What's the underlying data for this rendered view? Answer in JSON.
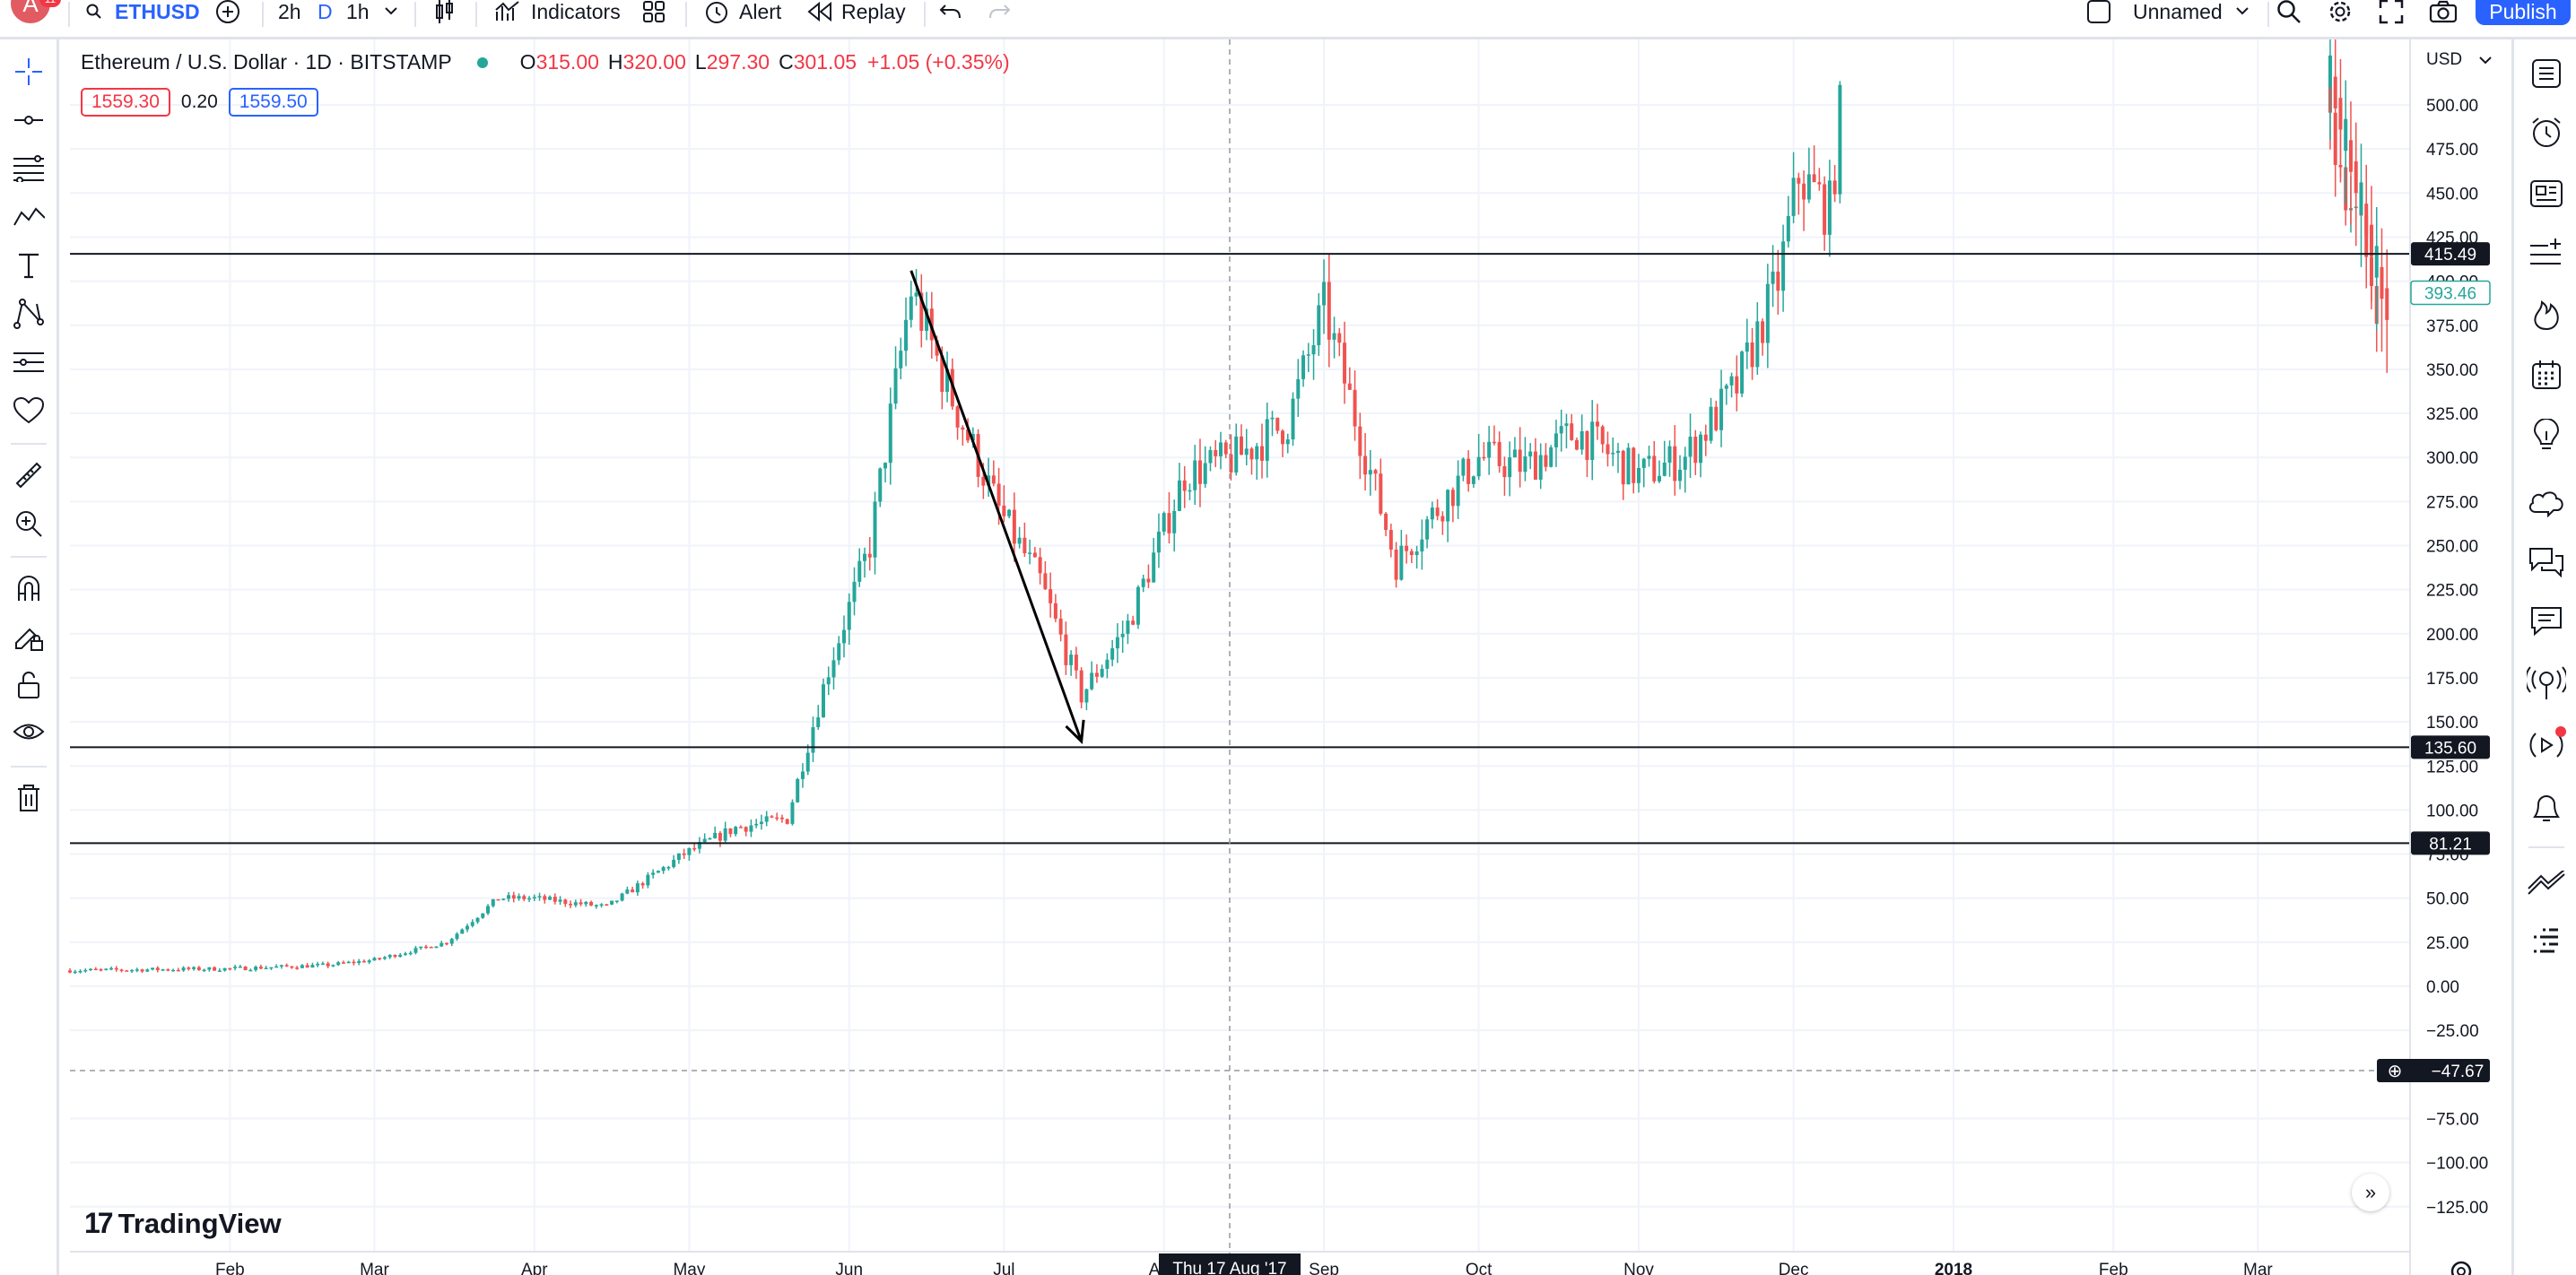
{
  "header": {
    "avatar_letter": "A",
    "avatar_badge": "11",
    "symbol": "ETHUSD",
    "intervals": [
      "2h",
      "D",
      "1h"
    ],
    "indicators_label": "Indicators",
    "alert_label": "Alert",
    "replay_label": "Replay",
    "layout_name": "Unnamed",
    "publish_label": "Publish"
  },
  "legend": {
    "title": "Ethereum / U.S. Dollar · 1D · BITSTAMP",
    "o_key": "O",
    "o_val": "315.00",
    "h_key": "H",
    "h_val": "320.00",
    "l_key": "L",
    "l_val": "297.30",
    "c_key": "C",
    "c_val": "301.05",
    "change": "+1.05 (+0.35%)",
    "sell_price": "1559.30",
    "spread": "0.20",
    "buy_price": "1559.50"
  },
  "brand": "TradingView",
  "chart_data": {
    "type": "candlestick",
    "currency_label": "USD",
    "y_ticks": [
      "500.00",
      "475.00",
      "450.00",
      "425.00",
      "400.00",
      "375.00",
      "350.00",
      "325.00",
      "300.00",
      "275.00",
      "250.00",
      "225.00",
      "200.00",
      "175.00",
      "150.00",
      "125.00",
      "100.00",
      "75.00",
      "50.00",
      "25.00",
      "0.00",
      "−25.00",
      "−75.00",
      "−100.00",
      "−125.00"
    ],
    "x_ticks": [
      "Feb",
      "Mar",
      "Apr",
      "May",
      "Jun",
      "Jul",
      "Aug",
      "Sep",
      "Oct",
      "Nov",
      "Dec",
      "2018",
      "Feb",
      "Mar"
    ],
    "ylim": [
      -135,
      530
    ],
    "horizontal_lines": [
      {
        "price": 415.49,
        "label": "415.49"
      },
      {
        "price": 135.6,
        "label": "135.60"
      },
      {
        "price": 81.21,
        "label": "81.21"
      }
    ],
    "current_price_label": "393.46",
    "crosshair_price_label": "−47.67",
    "crosshair_date_label": "Thu 17 Aug '17",
    "trend_arrow": {
      "from": [
        "2017-06-13",
        406
      ],
      "to": [
        "2017-07-16",
        139
      ]
    },
    "price_path": [
      [
        "2017-01-01",
        9
      ],
      [
        "2017-02-01",
        10
      ],
      [
        "2017-02-20",
        12
      ],
      [
        "2017-03-01",
        15
      ],
      [
        "2017-03-15",
        25
      ],
      [
        "2017-03-25",
        50
      ],
      [
        "2017-04-01",
        50
      ],
      [
        "2017-04-15",
        45
      ],
      [
        "2017-04-30",
        75
      ],
      [
        "2017-05-10",
        90
      ],
      [
        "2017-05-20",
        95
      ],
      [
        "2017-05-28",
        180
      ],
      [
        "2017-06-05",
        250
      ],
      [
        "2017-06-13",
        395
      ],
      [
        "2017-06-20",
        340
      ],
      [
        "2017-06-30",
        270
      ],
      [
        "2017-07-08",
        230
      ],
      [
        "2017-07-16",
        165
      ],
      [
        "2017-07-25",
        205
      ],
      [
        "2017-08-05",
        290
      ],
      [
        "2017-08-15",
        300
      ],
      [
        "2017-08-25",
        320
      ],
      [
        "2017-09-01",
        385
      ],
      [
        "2017-09-15",
        240
      ],
      [
        "2017-09-20",
        260
      ],
      [
        "2017-10-01",
        300
      ],
      [
        "2017-10-10",
        295
      ],
      [
        "2017-10-20",
        315
      ],
      [
        "2017-11-01",
        290
      ],
      [
        "2017-11-10",
        300
      ],
      [
        "2017-11-20",
        340
      ],
      [
        "2017-11-28",
        400
      ],
      [
        "2017-12-02",
        460
      ],
      [
        "2017-12-08",
        440
      ],
      [
        "2017-12-11",
        520
      ],
      [
        "2018-03-15",
        490
      ],
      [
        "2018-03-25",
        380
      ]
    ]
  },
  "icons": {
    "left": [
      "crosshair-icon",
      "trend-line-icon",
      "fib-icon",
      "pattern-icon",
      "text-icon",
      "prediction-icon",
      "measure-lines-icon",
      "heart-icon",
      "ruler-icon",
      "zoom-in-icon",
      "magnet-icon",
      "lock-draw-icon",
      "unlock-icon",
      "eye-icon",
      "trash-icon"
    ],
    "right": [
      "watchlist-icon",
      "alarm-clock-icon",
      "news-icon",
      "add-list-icon",
      "hotlist-icon",
      "calendar-icon",
      "idea-icon",
      "chat-cloud-icon",
      "chats-icon",
      "message-icon",
      "streams-icon",
      "live-icon",
      "bell-icon",
      "trend-icon",
      "dom-icon"
    ]
  }
}
